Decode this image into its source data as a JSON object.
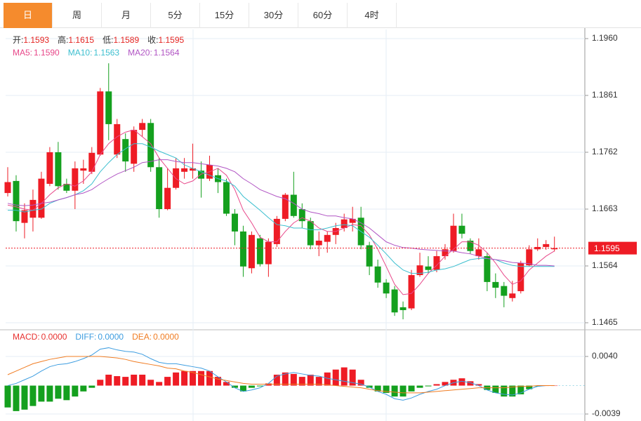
{
  "tabs": {
    "items": [
      "日",
      "周",
      "月",
      "5分",
      "15分",
      "30分",
      "60分",
      "4时"
    ],
    "active": 0,
    "active_color": "#f58b2d"
  },
  "chart_data": [
    {
      "type": "candlestick",
      "info": [
        {
          "label": "开:",
          "value": 1.1593
        },
        {
          "label": "高:",
          "value": 1.1615
        },
        {
          "label": "低:",
          "value": 1.1589
        },
        {
          "label": "收:",
          "value": 1.1595
        }
      ],
      "up_color": "#ee1c25",
      "down_color": "#14a01e",
      "open": [
        1.1691,
        1.1712,
        1.1639,
        1.1648,
        1.1648,
        1.1707,
        1.1762,
        1.1707,
        1.1695,
        1.173,
        1.1728,
        1.1758,
        1.1868,
        1.1758,
        1.1785,
        1.1742,
        1.1801,
        1.1813,
        1.1736,
        1.1663,
        1.17,
        1.1728,
        1.173,
        1.173,
        1.1716,
        1.1722,
        1.171,
        1.1655,
        1.1624,
        1.156,
        1.1612,
        1.1567,
        1.1602,
        1.1646,
        1.1688,
        1.1663,
        1.1642,
        1.16,
        1.1606,
        1.1618,
        1.163,
        1.1639,
        1.1648,
        1.16,
        1.1563,
        1.1535,
        1.1523,
        1.1492,
        1.149,
        1.1548,
        1.1563,
        1.1557,
        1.1581,
        1.159,
        1.1634,
        1.1608,
        1.1581,
        1.1581,
        1.1536,
        1.1529,
        1.1508,
        1.152,
        1.1565,
        1.1593,
        1.1597,
        1.1593
      ],
      "high": [
        1.1736,
        1.1722,
        1.1673,
        1.1697,
        1.1728,
        1.1771,
        1.178,
        1.1716,
        1.1746,
        1.1749,
        1.1771,
        1.1874,
        1.1917,
        1.182,
        1.1795,
        1.1807,
        1.182,
        1.182,
        1.1752,
        1.1734,
        1.1752,
        1.1752,
        1.1777,
        1.1746,
        1.1756,
        1.1734,
        1.1716,
        1.1663,
        1.1634,
        1.1624,
        1.1618,
        1.1612,
        1.1651,
        1.1691,
        1.1728,
        1.1673,
        1.1648,
        1.1624,
        1.1624,
        1.1639,
        1.1655,
        1.1667,
        1.1667,
        1.1606,
        1.1575,
        1.1541,
        1.1529,
        1.1502,
        1.1557,
        1.1587,
        1.1581,
        1.159,
        1.1602,
        1.1655,
        1.1655,
        1.1612,
        1.1612,
        1.1587,
        1.1551,
        1.1536,
        1.1538,
        1.1573,
        1.16,
        1.1612,
        1.1609,
        1.1615
      ],
      "low": [
        1.1685,
        1.1624,
        1.1612,
        1.1624,
        1.1646,
        1.1703,
        1.1697,
        1.1691,
        1.1663,
        1.1707,
        1.1724,
        1.1756,
        1.1783,
        1.1752,
        1.1728,
        1.1728,
        1.1789,
        1.1728,
        1.1648,
        1.1661,
        1.1697,
        1.1716,
        1.1716,
        1.1683,
        1.1712,
        1.1691,
        1.1651,
        1.16,
        1.1545,
        1.1551,
        1.1563,
        1.1545,
        1.1597,
        1.1642,
        1.1648,
        1.163,
        1.1593,
        1.1581,
        1.1587,
        1.1602,
        1.1624,
        1.1624,
        1.1593,
        1.1548,
        1.1526,
        1.1508,
        1.1477,
        1.1471,
        1.1487,
        1.1545,
        1.1551,
        1.1553,
        1.1575,
        1.1587,
        1.1612,
        1.1585,
        1.1575,
        1.152,
        1.1508,
        1.1492,
        1.1502,
        1.1516,
        1.1563,
        1.159,
        1.1592,
        1.1589
      ],
      "close": [
        1.171,
        1.1642,
        1.1661,
        1.1679,
        1.1716,
        1.1762,
        1.1703,
        1.1695,
        1.1734,
        1.1734,
        1.1761,
        1.1868,
        1.1811,
        1.1811,
        1.1746,
        1.1801,
        1.1813,
        1.1736,
        1.1663,
        1.17,
        1.1734,
        1.1734,
        1.1734,
        1.1716,
        1.174,
        1.171,
        1.1655,
        1.1624,
        1.1563,
        1.1618,
        1.1567,
        1.1606,
        1.1646,
        1.1688,
        1.1651,
        1.1642,
        1.16,
        1.1608,
        1.1618,
        1.163,
        1.1645,
        1.1646,
        1.16,
        1.1563,
        1.1535,
        1.1516,
        1.1483,
        1.1487,
        1.1548,
        1.1565,
        1.1557,
        1.1581,
        1.1593,
        1.1634,
        1.162,
        1.159,
        1.1593,
        1.1536,
        1.1526,
        1.1512,
        1.1516,
        1.1569,
        1.1593,
        1.1597,
        1.1602,
        1.1595
      ],
      "series": [
        {
          "name": "MA5:",
          "color": "#e8488a",
          "legend_value": {
            "value": 1.159,
            "label": "1.1590"
          },
          "values": [
            1.167,
            1.1667,
            1.1663,
            1.1661,
            1.1673,
            1.1688,
            1.17,
            1.1707,
            1.1703,
            1.1712,
            1.1728,
            1.1758,
            1.1777,
            1.1789,
            1.1797,
            1.1801,
            1.1789,
            1.1777,
            1.1752,
            1.1734,
            1.1716,
            1.1707,
            1.1712,
            1.1724,
            1.1728,
            1.1734,
            1.1722,
            1.1697,
            1.1661,
            1.1639,
            1.1614,
            1.1606,
            1.1606,
            1.1624,
            1.1639,
            1.1648,
            1.1642,
            1.163,
            1.1624,
            1.1624,
            1.163,
            1.1636,
            1.1634,
            1.1618,
            1.1593,
            1.1563,
            1.1532,
            1.1514,
            1.1516,
            1.1532,
            1.1551,
            1.1565,
            1.1581,
            1.1593,
            1.1606,
            1.1606,
            1.16,
            1.1587,
            1.1569,
            1.1548,
            1.1532,
            1.1538,
            1.1557,
            1.1569,
            1.1581,
            1.159
          ]
        },
        {
          "name": "MA10:",
          "color": "#3cbfcf",
          "legend_value": {
            "value": 1.1563,
            "label": "1.1563"
          },
          "values": [
            1.1661,
            1.1661,
            1.1658,
            1.1661,
            1.1663,
            1.1673,
            1.1679,
            1.1683,
            1.1688,
            1.1695,
            1.1707,
            1.1728,
            1.1744,
            1.1758,
            1.1768,
            1.1777,
            1.1777,
            1.1771,
            1.1764,
            1.1758,
            1.1752,
            1.174,
            1.1734,
            1.1728,
            1.1722,
            1.1716,
            1.1712,
            1.1703,
            1.1685,
            1.1673,
            1.1661,
            1.1648,
            1.1636,
            1.1634,
            1.163,
            1.163,
            1.1627,
            1.1627,
            1.163,
            1.1634,
            1.1636,
            1.1634,
            1.1624,
            1.1614,
            1.16,
            1.1585,
            1.1569,
            1.1557,
            1.1551,
            1.1551,
            1.1553,
            1.1557,
            1.1559,
            1.1563,
            1.1569,
            1.1575,
            1.1577,
            1.1577,
            1.1575,
            1.1569,
            1.1565,
            1.1563,
            1.1563,
            1.1563,
            1.1563,
            1.1563
          ]
        },
        {
          "name": "MA20:",
          "color": "#b155c4",
          "legend_value": {
            "value": 1.1564,
            "label": "1.1564"
          },
          "values": [
            1.1673,
            1.167,
            1.1669,
            1.167,
            1.1673,
            1.1675,
            1.1679,
            1.1683,
            1.1688,
            1.1691,
            1.1697,
            1.1707,
            1.1716,
            1.1724,
            1.173,
            1.1736,
            1.1744,
            1.1746,
            1.1749,
            1.1749,
            1.1746,
            1.1744,
            1.1744,
            1.1742,
            1.174,
            1.1738,
            1.1734,
            1.1728,
            1.1716,
            1.1707,
            1.1697,
            1.1691,
            1.1685,
            1.1681,
            1.1673,
            1.1663,
            1.1658,
            1.1655,
            1.1651,
            1.1651,
            1.1648,
            1.1646,
            1.1639,
            1.163,
            1.1618,
            1.1606,
            1.16,
            1.1596,
            1.1595,
            1.1593,
            1.1592,
            1.1591,
            1.159,
            1.159,
            1.1587,
            1.1585,
            1.1581,
            1.1577,
            1.1575,
            1.1573,
            1.157,
            1.1569,
            1.1568,
            1.1565,
            1.1565,
            1.1564
          ]
        }
      ],
      "current": 1.1595,
      "current_color": "#ee1c25",
      "ylim": [
        1.14552,
        1.19759
      ],
      "yticks": [
        {
          "value": 1.196,
          "label": "1.1960"
        },
        1.1861,
        1.1762,
        1.1663,
        1.1564,
        1.1465
      ],
      "grid": true
    },
    {
      "type": "macd",
      "histogram": {
        "name": "MACD:",
        "color": "#e8312f",
        "up_color": "#ee1c25",
        "down_color": "#14a01e",
        "legend_value": {
          "value": 0,
          "label": "0.0000"
        },
        "values": [
          -0.003,
          -0.0035,
          -0.0033,
          -0.0028,
          -0.0022,
          -0.0022,
          -0.0018,
          -0.002,
          -0.0015,
          -0.0008,
          -0.0003,
          0.0008,
          0.0015,
          0.0013,
          0.0012,
          0.0015,
          0.0015,
          0.0008,
          0.0005,
          0.0012,
          0.0018,
          0.002,
          0.002,
          0.002,
          0.002,
          0.0012,
          0.0005,
          -0.0003,
          -0.0008,
          -0.0003,
          -0.0001,
          0.0003,
          0.0015,
          0.0018,
          0.0016,
          0.0012,
          0.0015,
          0.0012,
          0.0018,
          0.0022,
          0.0025,
          0.0022,
          0.0008,
          -0.0003,
          -0.0008,
          -0.001,
          -0.0015,
          -0.0015,
          -0.0008,
          -0.0003,
          -0.0001,
          0.0002,
          0.0005,
          0.0008,
          0.001,
          0.0006,
          0.0002,
          -0.0006,
          -0.001,
          -0.0015,
          -0.0015,
          -0.0012,
          -0.0005,
          -0.0001,
          0.0,
          0.0
        ]
      },
      "series": [
        {
          "name": "DIFF:",
          "color": "#3d9de0",
          "legend_value": {
            "value": 0,
            "label": "0.0000"
          },
          "values": [
            0.0,
            0.0003,
            0.0008,
            0.0013,
            0.002,
            0.0026,
            0.0029,
            0.003,
            0.0033,
            0.0037,
            0.0042,
            0.005,
            0.0052,
            0.0049,
            0.0047,
            0.0046,
            0.0043,
            0.0037,
            0.0032,
            0.003,
            0.003,
            0.0028,
            0.0026,
            0.0024,
            0.002,
            0.0012,
            0.0005,
            -0.0003,
            -0.0008,
            -0.0006,
            -0.0003,
            0.0003,
            0.0013,
            0.0016,
            0.0018,
            0.0016,
            0.0014,
            0.0013,
            0.001,
            0.0008,
            0.0006,
            0.0004,
            0.0002,
            -0.0002,
            -0.0008,
            -0.0012,
            -0.0018,
            -0.002,
            -0.0017,
            -0.0012,
            -0.0008,
            -0.0005,
            0.0,
            0.0004,
            0.0006,
            0.0004,
            0.0,
            -0.0006,
            -0.001,
            -0.0012,
            -0.0013,
            -0.001,
            -0.0005,
            -0.0001,
            0.0,
            0.0
          ]
        },
        {
          "name": "DEA:",
          "color": "#f07c22",
          "legend_value": {
            "value": 0,
            "label": "0.0000"
          },
          "values": [
            0.0015,
            0.002,
            0.0025,
            0.003,
            0.0033,
            0.0036,
            0.0038,
            0.004,
            0.004,
            0.004,
            0.004,
            0.004,
            0.0039,
            0.0038,
            0.0036,
            0.0033,
            0.0031,
            0.0029,
            0.0027,
            0.0024,
            0.0023,
            0.002,
            0.0018,
            0.0015,
            0.0012,
            0.0009,
            0.0007,
            0.0005,
            0.0003,
            0.0002,
            0.0002,
            0.0002,
            0.0002,
            0.0002,
            0.0002,
            0.0002,
            0.0002,
            0.0002,
            0.0001,
            0.0,
            -0.0001,
            -0.0002,
            -0.0003,
            -0.0005,
            -0.0007,
            -0.0008,
            -0.0009,
            -0.001,
            -0.001,
            -0.001,
            -0.0009,
            -0.0008,
            -0.0007,
            -0.0006,
            -0.0005,
            -0.0004,
            -0.0003,
            -0.0003,
            -0.0003,
            -0.0003,
            -0.0002,
            -0.0001,
            -0.0001,
            0.0,
            0.0,
            0.0
          ]
        }
      ],
      "ylim": [
        -0.00486,
        0.00747
      ],
      "yticks": [
        {
          "value": 0.004,
          "label": "0.0040"
        },
        -0.0039
      ],
      "grid": true
    }
  ]
}
